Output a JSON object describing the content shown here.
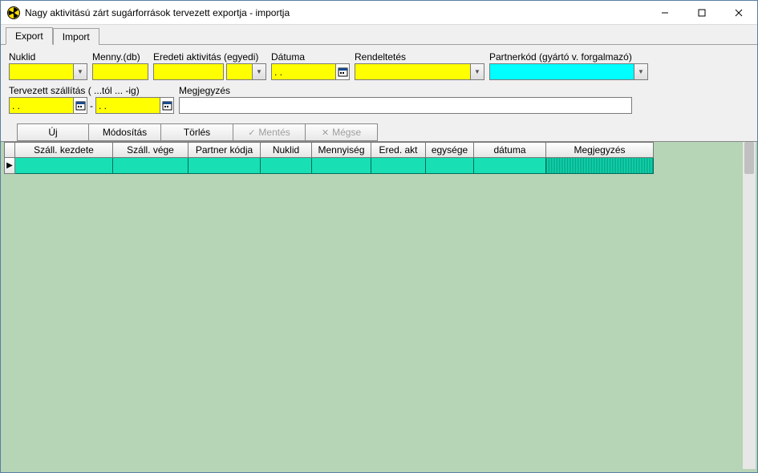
{
  "window": {
    "title": "Nagy aktivitású zárt sugárforrások tervezett exportja - importja"
  },
  "tabs": {
    "export": "Export",
    "import": "Import"
  },
  "form": {
    "nuklid_label": "Nuklid",
    "menny_label": "Menny.(db)",
    "eredeti_label": "Eredeti aktivitás (egyedi)",
    "datuma_label": "Dátuma",
    "rendeltetes_label": "Rendeltetés",
    "partnerkod_label": "Partnerkód (gyártó v. forgalmazó)",
    "tervezett_label": "Tervezett szállítás ( ...tól ... -ig)",
    "megjegyzes_label": "Megjegyzés",
    "date_placeholder": ". .",
    "nuklid_value": "",
    "menny_value": "",
    "eredeti_value": "",
    "eredeti_unit": "",
    "datuma_value": ". .",
    "rendeltetes_value": "",
    "partnerkod_value": "",
    "szall_from": ". .",
    "szall_to": ". .",
    "megjegyzes_value": ""
  },
  "buttons": {
    "uj": "Új",
    "modositas": "Módosítás",
    "torles": "Törlés",
    "mentes": "Mentés",
    "megse": "Mégse"
  },
  "grid": {
    "columns": {
      "szall_kezdete": "Száll. kezdete",
      "szall_vege": "Száll. vége",
      "partner_kodja": "Partner kódja",
      "nuklid": "Nuklid",
      "mennyiseg": "Mennyiség",
      "ered_akt": "Ered. akt",
      "egysege": "egysége",
      "datuma": "dátuma",
      "megjegyzes": "Megjegyzés"
    },
    "column_widths": {
      "szall_kezdete": 122,
      "szall_vege": 94,
      "partner_kodja": 90,
      "nuklid": 64,
      "mennyiseg": 74,
      "ered_akt": 68,
      "egysege": 60,
      "datuma": 90,
      "megjegyzes": 134
    },
    "row_selector": "▶"
  },
  "colors": {
    "yellow": "#ffff00",
    "cyan": "#00ffff",
    "grid_bg": "#b6d4b6",
    "row_bg": "#18e0b4",
    "panel_bg": "#f0f0f0"
  }
}
